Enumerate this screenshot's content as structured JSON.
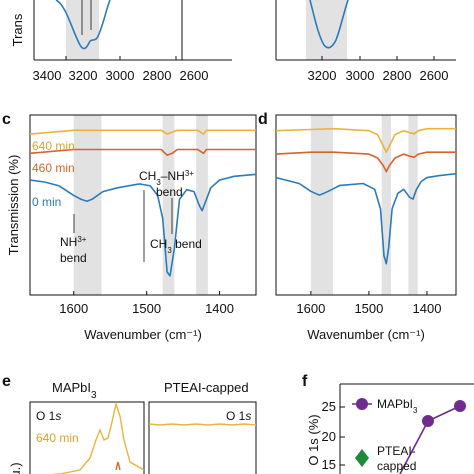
{
  "colors": {
    "blue": "#2b7bb9",
    "orange": "#d5632c",
    "yellow": "#e8b43b",
    "purple": "#6d2c8e",
    "green": "#1d8a3a",
    "band": "#e2e2e2"
  },
  "panels": {
    "a": {
      "ylabel_fragment": "Trans",
      "xticks": [
        "3400",
        "3200",
        "3000",
        "2800",
        "2600"
      ]
    },
    "b": {
      "xticks": [
        "3200",
        "3000",
        "2800",
        "2600"
      ]
    },
    "c": {
      "letter": "c",
      "ylabel": "Transmission (%)",
      "xlabel": "Wavenumber (cm⁻¹)",
      "xticks": [
        "1600",
        "1500",
        "1400"
      ],
      "series_labels": [
        "640 min",
        "460 min",
        "0 min"
      ],
      "annotations": {
        "nh3_1": "NH",
        "nh3_sup": "3+",
        "nh3_2": "bend",
        "chnh_1": "CH",
        "chnh_sub": "3",
        "chnh_2": "–NH",
        "chnh_sup": "3+",
        "chnh_3": "bend",
        "ch3_1": "CH",
        "ch3_sub": "3",
        "ch3_2": " bend"
      }
    },
    "d": {
      "letter": "d",
      "xlabel": "Wavenumber (cm⁻¹)",
      "xticks": [
        "1600",
        "1500",
        "1400"
      ]
    },
    "e": {
      "letter": "e",
      "title_left_1": "MAPbI",
      "title_left_sub": "3",
      "title_right": "PTEAI-capped",
      "o1s_1": "O 1",
      "o1s_2": "s",
      "time": "640 min",
      "ylabel_fragment": "u.)"
    },
    "f": {
      "letter": "f",
      "ylabel": "O 1s (%)",
      "yticks": [
        "25",
        "20",
        "15"
      ],
      "legend_1": "MAPbI",
      "legend_1_sub": "3",
      "legend_2a": "PTEAI-",
      "legend_2b": "capped"
    }
  },
  "chart_data": [
    {
      "panel": "a",
      "type": "line",
      "xlabel": "",
      "ylabel": "Trans",
      "xlim": [
        3400,
        2600
      ],
      "series": [
        {
          "values_x": [
            3300,
            3250,
            3215,
            3190,
            3180,
            3165,
            3150,
            3130,
            3110,
            3100
          ],
          "values_y": [
            0.0,
            0.25,
            0.7,
            0.95,
            0.85,
            0.88,
            0.8,
            0.5,
            0.2,
            0.0
          ]
        }
      ],
      "bands": [
        [
          3250,
          3130
        ]
      ]
    },
    {
      "panel": "b",
      "type": "line",
      "xlim": [
        3300,
        2600
      ],
      "series": [
        {
          "values_x": [
            3300,
            3250,
            3220,
            3200,
            3180,
            3160,
            3140,
            3120
          ],
          "values_y": [
            0.0,
            0.3,
            0.7,
            0.92,
            0.85,
            0.6,
            0.3,
            0.0
          ]
        }
      ],
      "bands": [
        [
          3245,
          3130
        ]
      ]
    },
    {
      "panel": "c",
      "type": "line",
      "xlabel": "Wavenumber (cm⁻¹)",
      "ylabel": "Transmission (%)",
      "xlim": [
        1660,
        1350
      ],
      "bands": [
        [
          1600,
          1562
        ],
        [
          1478,
          1462
        ],
        [
          1432,
          1416
        ]
      ],
      "series": [
        {
          "name": "640 min",
          "color": "#e8b43b",
          "x": [
            1660,
            1600,
            1580,
            1560,
            1500,
            1480,
            1472,
            1465,
            1458,
            1430,
            1422,
            1418,
            1400,
            1350
          ],
          "y": [
            92,
            93,
            93,
            93,
            93,
            93,
            92,
            92.5,
            93,
            93,
            92,
            93,
            93,
            93
          ]
        },
        {
          "name": "460 min",
          "color": "#d5632c",
          "x": [
            1660,
            1600,
            1580,
            1560,
            1500,
            1480,
            1472,
            1465,
            1458,
            1430,
            1422,
            1418,
            1400,
            1350
          ],
          "y": [
            87,
            88,
            88,
            88,
            88,
            88,
            86.5,
            87,
            88,
            88,
            87,
            88,
            88,
            88
          ]
        },
        {
          "name": "0 min",
          "color": "#2b7bb9",
          "x": [
            1660,
            1640,
            1620,
            1600,
            1590,
            1582,
            1575,
            1560,
            1540,
            1510,
            1495,
            1485,
            1478,
            1472,
            1468,
            1462,
            1455,
            1445,
            1435,
            1428,
            1424,
            1420,
            1412,
            1400,
            1380,
            1350
          ],
          "y": [
            80,
            79.5,
            78.5,
            76,
            75,
            74.5,
            75,
            77,
            78,
            79,
            78.5,
            76,
            70,
            56,
            55,
            62,
            75,
            77.5,
            77,
            73.5,
            72,
            74,
            78,
            80,
            81,
            81.5
          ]
        }
      ]
    },
    {
      "panel": "d",
      "type": "line",
      "xlabel": "Wavenumber (cm⁻¹)",
      "xlim": [
        1660,
        1350
      ],
      "bands": [
        [
          1600,
          1562
        ],
        [
          1478,
          1462
        ],
        [
          1432,
          1416
        ]
      ],
      "series": [
        {
          "color": "#e8b43b",
          "x": [
            1660,
            1600,
            1560,
            1500,
            1485,
            1475,
            1470,
            1465,
            1455,
            1440,
            1430,
            1422,
            1415,
            1400,
            1350
          ],
          "y": [
            94,
            94.3,
            94.5,
            94,
            93,
            90,
            88.5,
            90,
            93,
            94,
            93.5,
            93.2,
            94,
            94.5,
            94.5
          ]
        },
        {
          "color": "#d5632c",
          "x": [
            1660,
            1600,
            1560,
            1500,
            1485,
            1475,
            1470,
            1465,
            1455,
            1440,
            1430,
            1422,
            1415,
            1400,
            1350
          ],
          "y": [
            88,
            88.5,
            88.5,
            88,
            87,
            85,
            83.5,
            85,
            87,
            88,
            87.5,
            87.2,
            88,
            88.5,
            88.5
          ]
        },
        {
          "color": "#2b7bb9",
          "x": [
            1660,
            1620,
            1600,
            1585,
            1570,
            1550,
            1510,
            1490,
            1480,
            1474,
            1470,
            1466,
            1460,
            1450,
            1440,
            1430,
            1424,
            1418,
            1410,
            1400,
            1380,
            1350
          ],
          "y": [
            82,
            80.5,
            78.5,
            77.5,
            78.5,
            80,
            80.5,
            79,
            74,
            62,
            60,
            64,
            74,
            78,
            79,
            77,
            76.5,
            79,
            81,
            82,
            82.5,
            83
          ]
        }
      ]
    },
    {
      "panel": "e",
      "type": "line",
      "title": "MAPbI3 | PTEAI-capped",
      "series": [
        {
          "name": "640 min",
          "color": "#e8b43b",
          "x": [
            0,
            0.2,
            0.4,
            0.5,
            0.6,
            0.65,
            0.7,
            0.8,
            0.9,
            1.0
          ],
          "y": [
            0.05,
            0.1,
            0.3,
            0.55,
            0.4,
            0.6,
            0.7,
            0.3,
            0.1,
            0.05
          ]
        },
        {
          "name": "PTEAI-capped",
          "color": "#e8b43b",
          "x": [
            0,
            0.5,
            1.0
          ],
          "y": [
            0.0,
            0.02,
            0.0
          ]
        }
      ]
    },
    {
      "panel": "f",
      "type": "line",
      "ylabel": "O 1s (%)",
      "ylim": [
        13,
        26
      ],
      "series": [
        {
          "name": "MAPbI3",
          "color": "#6d2c8e",
          "x": [
            0.0,
            0.55,
            1.0
          ],
          "y": [
            12.5,
            21,
            23
          ]
        },
        {
          "name": "PTEAI-capped",
          "color": "#1d8a3a",
          "x": [],
          "y": []
        }
      ]
    }
  ]
}
